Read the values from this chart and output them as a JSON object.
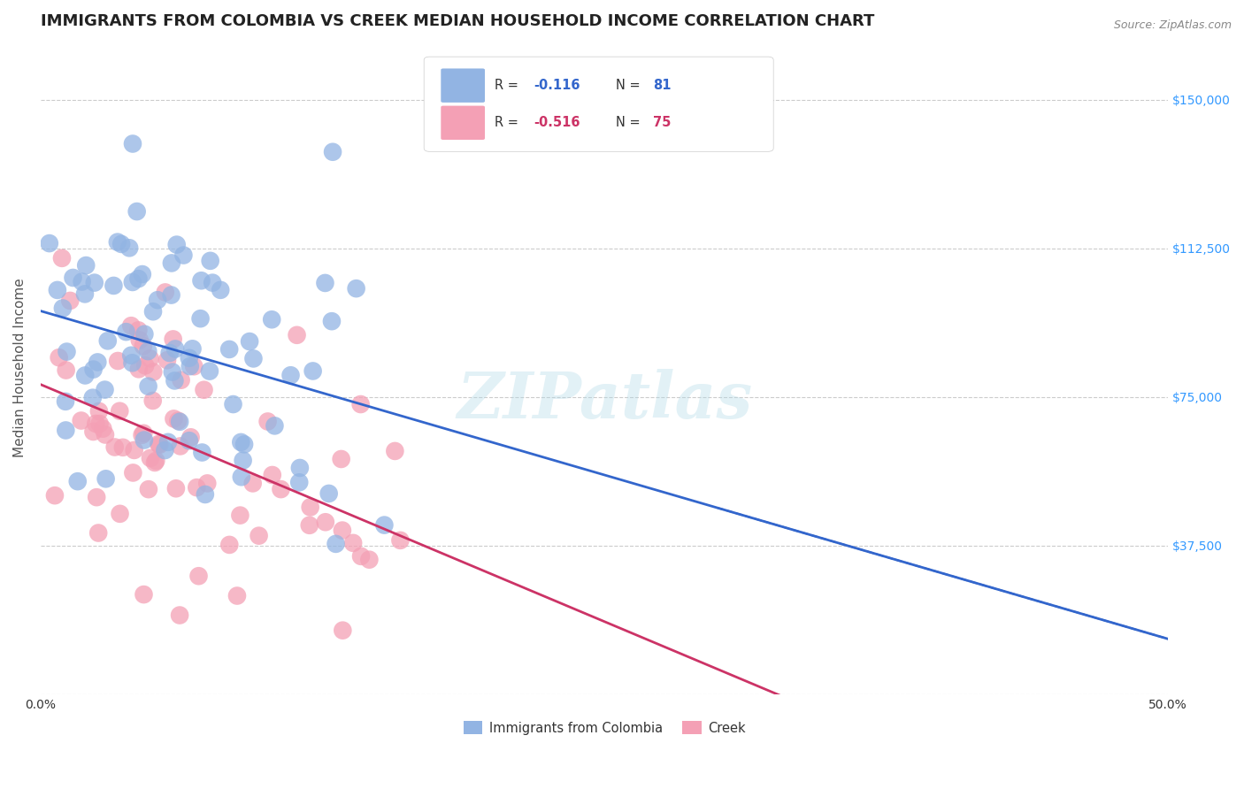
{
  "title": "IMMIGRANTS FROM COLOMBIA VS CREEK MEDIAN HOUSEHOLD INCOME CORRELATION CHART",
  "source": "Source: ZipAtlas.com",
  "xlabel_bottom": "",
  "ylabel": "Median Household Income",
  "xlim": [
    0.0,
    0.5
  ],
  "ylim": [
    0,
    165000
  ],
  "xticks": [
    0.0,
    0.05,
    0.1,
    0.15,
    0.2,
    0.25,
    0.3,
    0.35,
    0.4,
    0.45,
    0.5
  ],
  "xticklabels": [
    "0.0%",
    "",
    "",
    "",
    "",
    "",
    "",
    "",
    "",
    "",
    "50.0%"
  ],
  "yticks": [
    0,
    37500,
    75000,
    112500,
    150000
  ],
  "yticklabels": [
    "",
    "$37,500",
    "$75,000",
    "$112,500",
    "$150,000"
  ],
  "colombia_color": "#92b4e3",
  "creek_color": "#f4a0b5",
  "colombia_line_color": "#3366cc",
  "creek_line_color": "#cc3366",
  "colombia_R": -0.116,
  "colombia_N": 81,
  "creek_R": -0.516,
  "creek_N": 75,
  "legend_label_colombia": "Immigrants from Colombia",
  "legend_label_creek": "Creek",
  "watermark": "ZIPatlas",
  "background_color": "#ffffff",
  "grid_color": "#cccccc",
  "title_color": "#222222",
  "axis_label_color": "#555555",
  "tick_color": "#3399ff",
  "title_fontsize": 13,
  "label_fontsize": 11,
  "tick_fontsize": 10,
  "colombia_seed": 42,
  "creek_seed": 99
}
